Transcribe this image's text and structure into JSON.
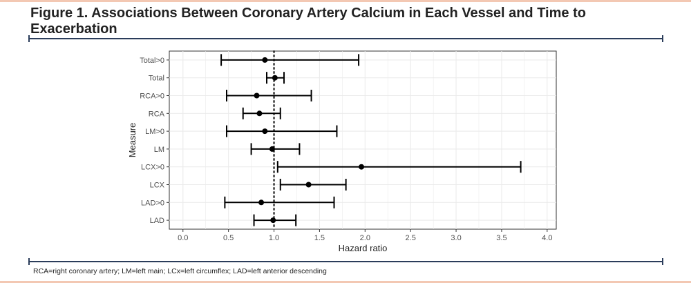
{
  "figure": {
    "title": "Figure 1. Associations Between Coronary Artery Calcium in Each Vessel and Time to Exacerbation",
    "footnote": "RCA=right coronary artery; LM=left main; LCx=left circumflex; LAD=left anterior descending"
  },
  "colors": {
    "accent": "#f3c8b3",
    "rule": "#2b3d5b",
    "mark": "#000000",
    "grid": "#ebebeb"
  },
  "chart_data": {
    "type": "forest",
    "xlabel": "Hazard ratio",
    "ylabel": "Measure",
    "xlim": [
      -0.15,
      4.1
    ],
    "xticks": [
      0.0,
      0.5,
      1.0,
      1.5,
      2.0,
      2.5,
      3.0,
      3.5,
      4.0
    ],
    "xtick_labels": [
      "0.0",
      "0.5",
      "1.0",
      "1.5",
      "2.0",
      "2.5",
      "3.0",
      "3.5",
      "4.0"
    ],
    "reference_line": 1.0,
    "grid": true,
    "categories": [
      "Total>0",
      "Total",
      "RCA>0",
      "RCA",
      "LM>0",
      "LM",
      "LCX>0",
      "LCX",
      "LAD>0",
      "LAD"
    ],
    "estimates": [
      0.9,
      1.01,
      0.81,
      0.84,
      0.9,
      0.98,
      1.96,
      1.38,
      0.86,
      0.99
    ],
    "lower": [
      0.42,
      0.92,
      0.48,
      0.66,
      0.48,
      0.75,
      1.04,
      1.07,
      0.46,
      0.78
    ],
    "upper": [
      1.93,
      1.11,
      1.41,
      1.07,
      1.69,
      1.28,
      3.71,
      1.79,
      1.66,
      1.24
    ]
  }
}
